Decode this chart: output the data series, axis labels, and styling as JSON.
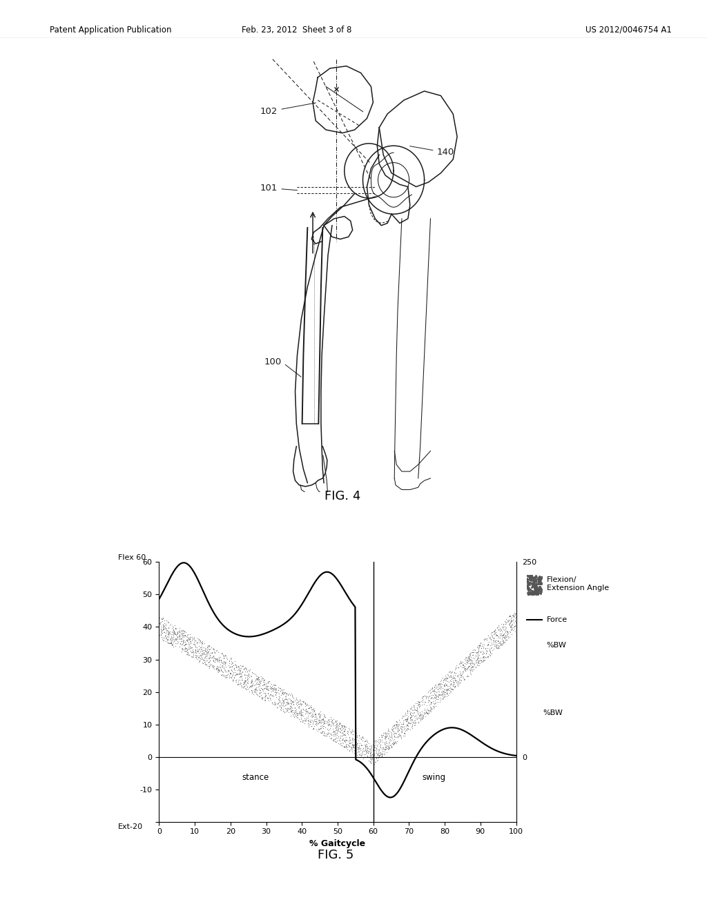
{
  "header_left": "Patent Application Publication",
  "header_mid": "Feb. 23, 2012  Sheet 3 of 8",
  "header_right": "US 2012/0046754 A1",
  "fig4_label": "FIG. 4",
  "fig5_label": "FIG. 5",
  "graph_xlabel": "% Gaitcycle",
  "graph_stance_label": "stance",
  "graph_swing_label": "swing",
  "graph_legend_1": "Flexion/\nExtension Angle",
  "graph_legend_2": "Force",
  "graph_legend_3": "%BW",
  "background_color": "#ffffff",
  "line_color": "#1a1a1a"
}
